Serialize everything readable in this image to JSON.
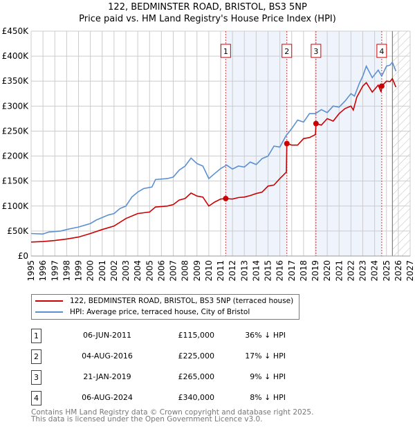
{
  "chart_data": {
    "type": "line",
    "title": "122, BEDMINSTER ROAD, BRISTOL, BS3 5NP",
    "subtitle": "Price paid vs. HM Land Registry's House Price Index (HPI)",
    "xlim": [
      1995,
      2027
    ],
    "ylim": [
      0,
      450000
    ],
    "x_ticks": [
      "1995",
      "1996",
      "1997",
      "1998",
      "1999",
      "2000",
      "2001",
      "2002",
      "2003",
      "2004",
      "2005",
      "2006",
      "2007",
      "2008",
      "2009",
      "2010",
      "2011",
      "2012",
      "2013",
      "2014",
      "2015",
      "2016",
      "2017",
      "2018",
      "2019",
      "2020",
      "2021",
      "2022",
      "2023",
      "2024",
      "2025",
      "2026",
      "2027"
    ],
    "y_ticks": [
      {
        "v": 0,
        "label": "£0"
      },
      {
        "v": 50000,
        "label": "£50K"
      },
      {
        "v": 100000,
        "label": "£100K"
      },
      {
        "v": 150000,
        "label": "£150K"
      },
      {
        "v": 200000,
        "label": "£200K"
      },
      {
        "v": 250000,
        "label": "£250K"
      },
      {
        "v": 300000,
        "label": "£300K"
      },
      {
        "v": 350000,
        "label": "£350K"
      },
      {
        "v": 400000,
        "label": "£400K"
      },
      {
        "v": 450000,
        "label": "£450K"
      }
    ],
    "grid": true,
    "shaded_ranges": [
      [
        2011.43,
        2016.59
      ],
      [
        2019.05,
        2024.6
      ]
    ],
    "forecast_start": 2025.5,
    "series": [
      {
        "name": "122, BEDMINSTER ROAD, BRISTOL, BS3 5NP (terraced house)",
        "color": "#cc0000",
        "x": [
          1995,
          1996,
          1997,
          1998,
          1999,
          2000,
          2001,
          2002,
          2003,
          2004,
          2005,
          2005.5,
          2006.5,
          2007,
          2007.5,
          2008,
          2008.5,
          2009,
          2009.5,
          2010,
          2010.5,
          2011,
          2011.43,
          2012,
          2012.5,
          2013,
          2013.5,
          2014,
          2014.5,
          2015,
          2015.5,
          2016,
          2016.55,
          2016.59,
          2017,
          2017.5,
          2018,
          2018.5,
          2019,
          2019.05,
          2019.5,
          2020,
          2020.5,
          2021,
          2021.5,
          2022,
          2022.2,
          2022.5,
          2023,
          2023.3,
          2023.8,
          2024.3,
          2024.55,
          2024.6,
          2025,
          2025.3,
          2025.5,
          2025.8
        ],
        "y": [
          28000,
          29000,
          31000,
          34000,
          38000,
          45000,
          53000,
          60000,
          75000,
          85000,
          88000,
          98000,
          100000,
          103000,
          112000,
          115000,
          126000,
          120000,
          118000,
          100000,
          108000,
          114000,
          115000,
          114000,
          117000,
          118000,
          121000,
          125000,
          128000,
          140000,
          142000,
          155000,
          168000,
          225000,
          222000,
          222000,
          235000,
          237000,
          243000,
          265000,
          262000,
          275000,
          270000,
          285000,
          295000,
          300000,
          292000,
          318000,
          340000,
          347000,
          328000,
          342000,
          328000,
          340000,
          350000,
          349000,
          355000,
          338000
        ]
      },
      {
        "name": "HPI: Average price, terraced house, City of Bristol",
        "color": "#5b8fd1",
        "x": [
          1995,
          1996,
          1996.5,
          1997.5,
          1998,
          1999,
          2000,
          2000.5,
          2001.5,
          2002,
          2002.5,
          2003,
          2003.5,
          2004,
          2004.5,
          2005.2,
          2005.5,
          2006.5,
          2007,
          2007.5,
          2008,
          2008.5,
          2009,
          2009.5,
          2010,
          2010.5,
          2011,
          2011.5,
          2012,
          2012.5,
          2013,
          2013.5,
          2014,
          2014.5,
          2015,
          2015.5,
          2016,
          2016.5,
          2017,
          2017.5,
          2018,
          2018.5,
          2019,
          2019.5,
          2020,
          2020.5,
          2021,
          2021.5,
          2022,
          2022.3,
          2022.7,
          2023,
          2023.3,
          2023.8,
          2024.3,
          2024.6,
          2025,
          2025.3,
          2025.5,
          2025.8
        ],
        "y": [
          45000,
          44000,
          48000,
          50000,
          53000,
          58000,
          65000,
          72000,
          82000,
          85000,
          95000,
          100000,
          118000,
          128000,
          135000,
          138000,
          153000,
          155000,
          158000,
          172000,
          180000,
          196000,
          185000,
          180000,
          155000,
          165000,
          175000,
          182000,
          174000,
          180000,
          178000,
          188000,
          183000,
          195000,
          200000,
          220000,
          218000,
          240000,
          255000,
          272000,
          268000,
          285000,
          285000,
          293000,
          287000,
          300000,
          298000,
          310000,
          325000,
          320000,
          345000,
          360000,
          380000,
          357000,
          372000,
          360000,
          380000,
          382000,
          388000,
          370000
        ]
      }
    ],
    "sales": [
      {
        "num": "1",
        "x": 2011.43,
        "y": 115000,
        "date": "06-JUN-2011",
        "price": "£115,000",
        "hpi": "36% ↓ HPI"
      },
      {
        "num": "2",
        "x": 2016.59,
        "y": 225000,
        "date": "04-AUG-2016",
        "price": "£225,000",
        "hpi": "17% ↓ HPI"
      },
      {
        "num": "3",
        "x": 2019.05,
        "y": 265000,
        "date": "21-JAN-2019",
        "price": "£265,000",
        "hpi": "9% ↓ HPI"
      },
      {
        "num": "4",
        "x": 2024.6,
        "y": 340000,
        "date": "06-AUG-2024",
        "price": "£340,000",
        "hpi": "8% ↓ HPI"
      }
    ]
  },
  "legend": {
    "red": "122, BEDMINSTER ROAD, BRISTOL, BS3 5NP (terraced house)",
    "blue": "HPI: Average price, terraced house, City of Bristol"
  },
  "footer": {
    "line1": "Contains HM Land Registry data © Crown copyright and database right 2025.",
    "line2": "This data is licensed under the Open Government Licence v3.0."
  }
}
